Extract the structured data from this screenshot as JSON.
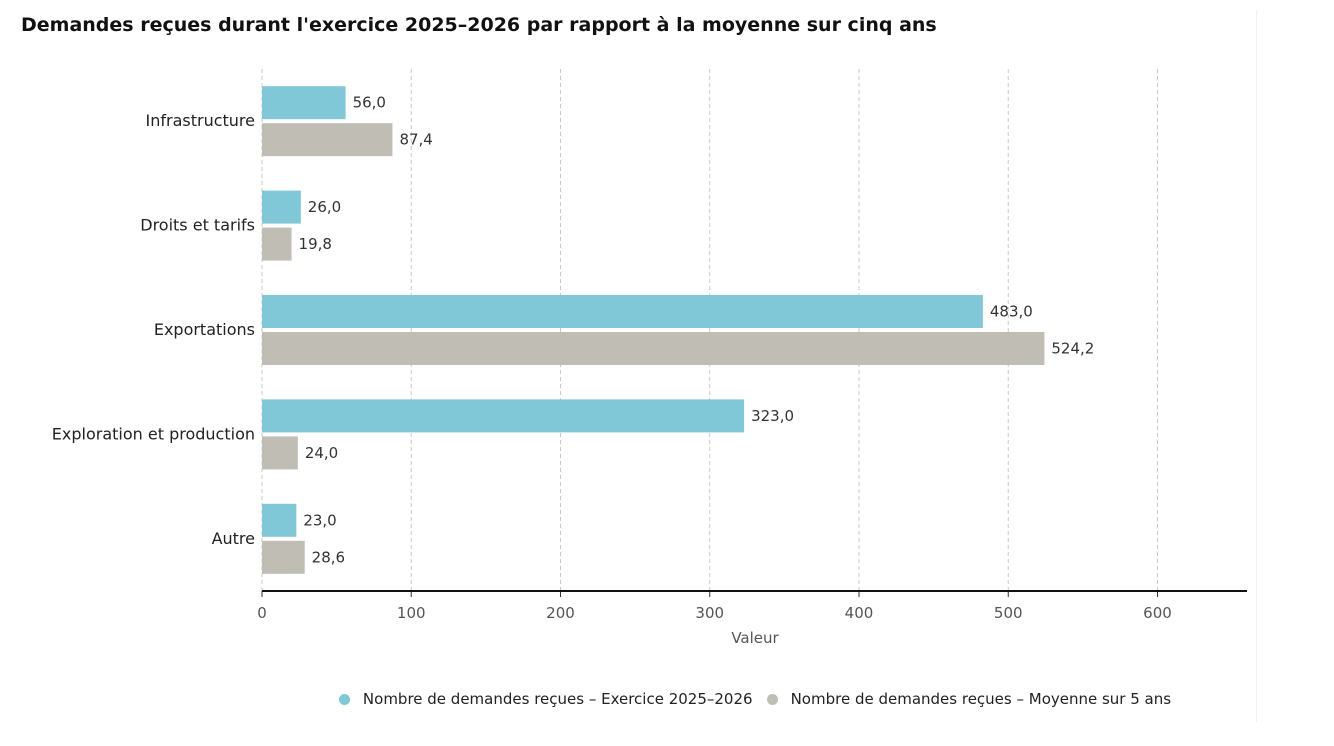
{
  "chart_data": {
    "type": "bar",
    "orientation": "horizontal",
    "title": "Demandes reçues durant l'exercice 2025–2026 par rapport à la moyenne sur cinq ans",
    "xlabel": "Valeur",
    "ylabel": "",
    "xlim": [
      0,
      660
    ],
    "xticks": [
      0,
      100,
      200,
      300,
      400,
      500,
      600
    ],
    "grid": true,
    "legend_position": "bottom",
    "categories": [
      "Infrastructure",
      "Droits et tarifs",
      "Exportations",
      "Exploration et production",
      "Autre"
    ],
    "series": [
      {
        "name": "Nombre de demandes reçues – Exercice 2025–2026",
        "color": "#80c8d8",
        "values": [
          56.0,
          26.0,
          483.0,
          323.0,
          23.0
        ],
        "labels": [
          "56,0",
          "26,0",
          "483,0",
          "323,0",
          "23,0"
        ]
      },
      {
        "name": "Nombre de demandes reçues – Moyenne sur 5 ans",
        "color": "#c0bdb5",
        "values": [
          87.4,
          19.8,
          524.2,
          24.0,
          28.6
        ],
        "labels": [
          "87,4",
          "19,8",
          "524,2",
          "24,0",
          "28,6"
        ]
      }
    ]
  }
}
